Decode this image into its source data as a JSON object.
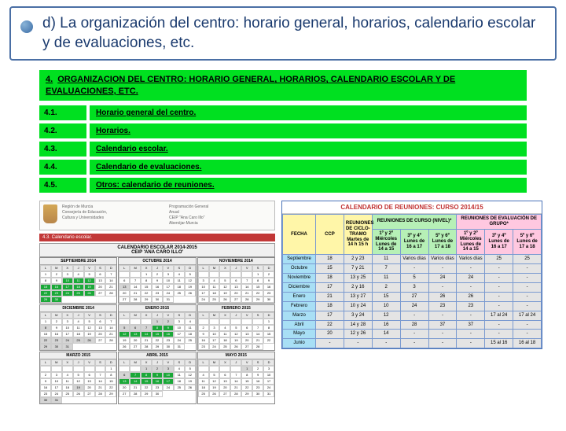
{
  "header": "d) La organización del centro: horario general, horarios, calendario escolar y de evaluaciones, etc.",
  "main": {
    "num": "4.",
    "title": "ORGANIZACION DEL CENTRO: HORARIO GENERAL, HORARIOS, CALENDARIO ESCOLAR Y DE EVALUACIONES, ETC."
  },
  "subs": [
    {
      "num": "4.1.",
      "label": "Horario general del centro."
    },
    {
      "num": "4.2.",
      "label": "Horarios."
    },
    {
      "num": "4.3.",
      "label": "Calendario escolar."
    },
    {
      "num": "4.4.",
      "label": "Calendario de evaluaciones."
    },
    {
      "num": "4.5.",
      "label": "Otros: calendario de reuniones."
    }
  ],
  "errata_label": "4.3. Calendario escolar.",
  "school_cal": {
    "title": "CALENDARIO ESCOLAR 2014-2015",
    "subtitle": "CEIP 'ANA CARO ILLO'",
    "day_heads": [
      "L",
      "M",
      "X",
      "J",
      "V",
      "S",
      "D"
    ],
    "months": [
      {
        "name": "SEPTIEMBRE 2014",
        "start": 0,
        "days": 30,
        "hl": [
          10,
          11,
          12,
          15,
          16,
          17,
          18,
          19,
          22,
          23,
          24,
          25,
          26,
          29,
          30
        ],
        "gr": []
      },
      {
        "name": "OCTUBRE 2014",
        "start": 2,
        "days": 31,
        "hl": [],
        "gr": [
          13
        ]
      },
      {
        "name": "NOVIEMBRE 2014",
        "start": 5,
        "days": 30,
        "hl": [],
        "gr": []
      },
      {
        "name": "DICIEMBRE 2014",
        "start": 0,
        "days": 31,
        "hl": [],
        "gr": [
          8,
          22,
          23,
          24,
          25,
          26,
          29,
          30,
          31
        ]
      },
      {
        "name": "ENERO 2015",
        "start": 3,
        "days": 31,
        "hl": [
          8,
          9,
          12,
          13,
          14,
          15,
          16
        ],
        "gr": [
          1,
          2,
          5,
          6,
          7
        ]
      },
      {
        "name": "FEBRERO 2015",
        "start": 6,
        "days": 28,
        "hl": [],
        "gr": []
      },
      {
        "name": "MARZO 2015",
        "start": 6,
        "days": 31,
        "hl": [],
        "gr": [
          19,
          30,
          31
        ]
      },
      {
        "name": "ABRIL 2015",
        "start": 2,
        "days": 30,
        "hl": [
          7,
          8,
          9,
          10,
          13,
          14,
          15,
          16,
          17
        ],
        "gr": [
          1,
          2,
          3,
          6
        ]
      },
      {
        "name": "MAYO 2015",
        "start": 4,
        "days": 31,
        "hl": [],
        "gr": [
          1
        ]
      }
    ]
  },
  "reuniones": {
    "title": "CALENDARIO DE REUNIONES: CURSO 2014/15",
    "cols": {
      "fecha": "FECHA",
      "ccp": "CCP",
      "claustro": "REUNIONES DE CICLO-TRAMO Martes de 14 h 15 h",
      "nivel_group": "REUNIONES DE CURSO (NIVEL)*",
      "grupo_group": "REUNIONES DE EVALUACIÓN DE GRUPO*",
      "nivel_sub": [
        "1º y 2º Miércoles Lunes de 14 a 15",
        "3º y 4º Lunes de 16 a 17",
        "5º y 6º Lunes de 17 a 18"
      ],
      "grupo_sub": [
        "1º y 2º Miércoles Lunes de 14 a 15",
        "3º y 4º Lunes de 16 a 17",
        "5º y 6º Lunes de 17 a 18"
      ]
    },
    "rows": [
      {
        "m": "Septiembre",
        "ccp": "18",
        "cl": "2 y 23",
        "n1": "11",
        "n2": "Varios días",
        "n3": "Varios días",
        "g1": "Varios días",
        "g2": "25",
        "g3": "25"
      },
      {
        "m": "Octubre",
        "ccp": "15",
        "cl": "7 y 21",
        "n1": "7",
        "n2": "-",
        "n3": "-",
        "g1": "-",
        "g2": "-",
        "g3": "-"
      },
      {
        "m": "Noviembre",
        "ccp": "18",
        "cl": "13 y 25",
        "n1": "11",
        "n2": "5",
        "n3": "24",
        "g1": "24",
        "g2": "-",
        "g3": "-"
      },
      {
        "m": "Diciembre",
        "ccp": "17",
        "cl": "2 y 16",
        "n1": "2",
        "n2": "3",
        "n3": "-",
        "g1": "-",
        "g2": "-",
        "g3": "-"
      },
      {
        "m": "Enero",
        "ccp": "21",
        "cl": "13 y 27",
        "n1": "15",
        "n2": "27",
        "n3": "26",
        "g1": "26",
        "g2": "-",
        "g3": "-"
      },
      {
        "m": "Febrero",
        "ccp": "18",
        "cl": "10 y 24",
        "n1": "10",
        "n2": "24",
        "n3": "23",
        "g1": "23",
        "g2": "-",
        "g3": "-"
      },
      {
        "m": "Marzo",
        "ccp": "17",
        "cl": "3 y 24",
        "n1": "12",
        "n2": "-",
        "n3": "-",
        "g1": "-",
        "g2": "17 al 24",
        "g3": "17 al 24"
      },
      {
        "m": "Abril",
        "ccp": "22",
        "cl": "14 y 28",
        "n1": "16",
        "n2": "28",
        "n3": "37",
        "g1": "37",
        "g2": "-",
        "g3": "-"
      },
      {
        "m": "Mayo",
        "ccp": "20",
        "cl": "12 y 26",
        "n1": "14",
        "n2": "-",
        "n3": "-",
        "g1": "-",
        "g2": "-",
        "g3": "-"
      },
      {
        "m": "Junio",
        "ccp": "-",
        "cl": "-",
        "n1": "-",
        "n2": "-",
        "n3": "-",
        "g1": "-",
        "g2": "15 al 16",
        "g3": "16 al 18"
      }
    ]
  },
  "colors": {
    "green_bar": "#00e020",
    "header_border": "#4a6fa5",
    "header_text": "#1a3a6e",
    "red_title": "#c03030",
    "table_border": "#7a9ad0",
    "bg_yellow": "#fff6a8",
    "bg_green": "#b6f0b6",
    "bg_pink": "#ffc8e0",
    "bg_blue": "#a8dff5",
    "bg_gray": "#e4e4e4",
    "cal_hl": "#1aa838",
    "cal_gr": "#d5d5d5",
    "errata_bg": "#c23838"
  }
}
